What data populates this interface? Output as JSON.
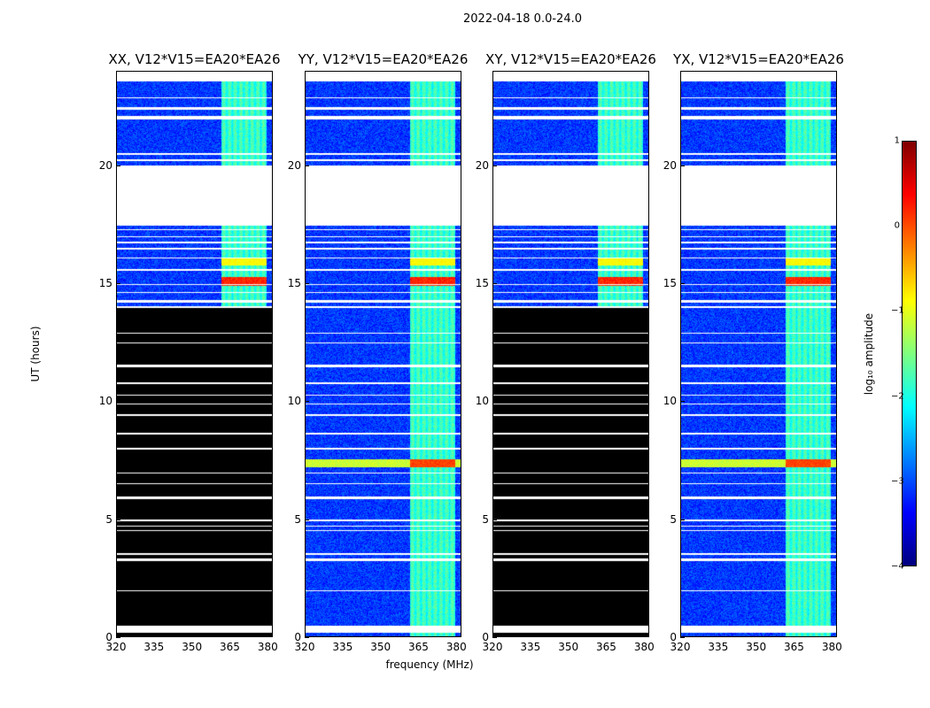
{
  "figure": {
    "suptitle": "2022-04-18 0.0-24.0"
  },
  "colorbar": {
    "label": "log₁₀ amplitude",
    "ticks": [
      "1",
      "0",
      "−1",
      "−2",
      "−3",
      "−4"
    ],
    "range": [
      -4,
      1
    ],
    "colors": [
      "#00007f",
      "#0000ff",
      "#007fff",
      "#00ffff",
      "#7fff7f",
      "#ffff00",
      "#ff7f00",
      "#ff0000",
      "#7f0000"
    ]
  },
  "chart_data": {
    "type": "heatmap",
    "title": "2022-04-18 0.0-24.0",
    "xlabel": "frequency (MHz)",
    "ylabel": "UT (hours)",
    "xlim": [
      320,
      382
    ],
    "ylim": [
      0,
      24
    ],
    "xticks": [
      "320",
      "335",
      "350",
      "365",
      "380"
    ],
    "yticks": [
      "0",
      "5",
      "10",
      "15",
      "20"
    ],
    "colorbar_label": "log₁₀ amplitude",
    "color_range": [
      -4,
      1
    ],
    "panels": [
      {
        "title": "XX, V12*V15=EA20*EA26",
        "blank_below_hours": 14.0
      },
      {
        "title": "YY, V12*V15=EA20*EA26",
        "blank_below_hours": 0
      },
      {
        "title": "XY, V12*V15=EA20*EA26",
        "blank_below_hours": 14.0
      },
      {
        "title": "YX, V12*V15=EA20*EA26",
        "blank_below_hours": 0
      }
    ]
  }
}
